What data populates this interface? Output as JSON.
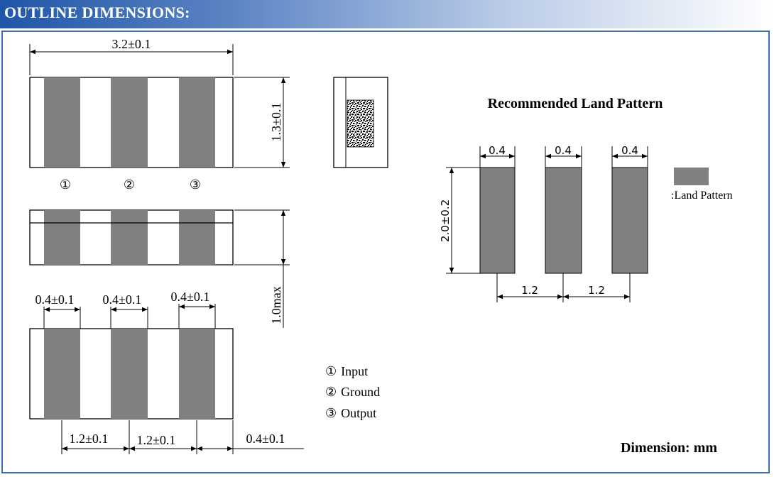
{
  "header": {
    "title": "OUTLINE DIMENSIONS:",
    "colors": {
      "bar": "#1f56a8",
      "border": "#3d6fb7",
      "pad": "#808080"
    }
  },
  "top_view": {
    "length": "3.2±0.1",
    "width": "1.3±0.1",
    "pins": [
      "①",
      "②",
      "③"
    ]
  },
  "side_view": {
    "height": "1.0max"
  },
  "bottom_view": {
    "pad_widths": [
      "0.4±0.1",
      "0.4±0.1",
      "0.4±0.1"
    ],
    "pitch_1": "1.2±0.1",
    "pitch_2": "1.2±0.1",
    "edge": "0.4±0.1"
  },
  "legend": [
    {
      "num": "①",
      "label": "Input"
    },
    {
      "num": "②",
      "label": "Ground"
    },
    {
      "num": "③",
      "label": "Output"
    }
  ],
  "land_pattern": {
    "title": "Recommended Land Pattern",
    "pad_widths": [
      "0.4",
      "0.4",
      "0.4"
    ],
    "height": "2.0±0.2",
    "pitch_1": "1.2",
    "pitch_2": "1.2",
    "key_label": ":Land Pattern"
  },
  "units": "Dimension: mm"
}
